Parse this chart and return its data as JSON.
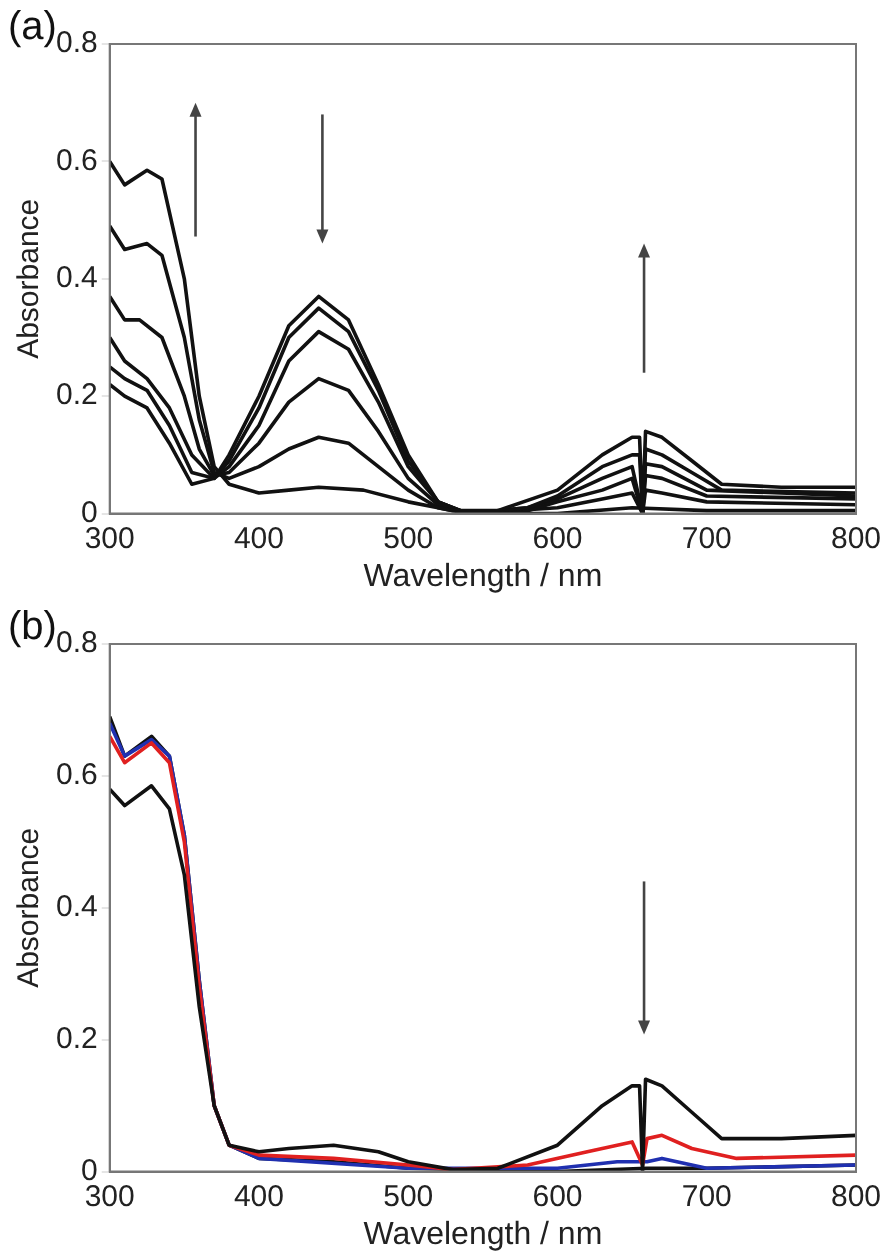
{
  "chart_data": [
    {
      "type": "line",
      "title": "(a)",
      "xlabel": "Wavelength / nm",
      "ylabel": "Absorbance",
      "xlim": [
        300,
        800
      ],
      "xticks": [
        300,
        400,
        500,
        600,
        700,
        800
      ],
      "ylim": [
        0,
        0.8
      ],
      "yticks": [
        0,
        0.2,
        0.4,
        0.6,
        0.8
      ],
      "marker": "none",
      "line_style": "solid",
      "series": [
        {
          "color": "#111111",
          "x": [
            300,
            310,
            325,
            335,
            350,
            360,
            370,
            380,
            400,
            420,
            440,
            470,
            500,
            530,
            560,
            600,
            630,
            650,
            655,
            657,
            659,
            670,
            690,
            710,
            750,
            800
          ],
          "values": [
            0.6,
            0.56,
            0.585,
            0.57,
            0.4,
            0.2,
            0.08,
            0.05,
            0.035,
            0.04,
            0.045,
            0.04,
            0.02,
            0.005,
            0.005,
            0.04,
            0.1,
            0.13,
            0.13,
            0.0,
            0.14,
            0.13,
            0.09,
            0.05,
            0.045,
            0.045
          ]
        },
        {
          "color": "#111111",
          "x": [
            300,
            310,
            325,
            335,
            350,
            360,
            370,
            380,
            400,
            420,
            440,
            460,
            480,
            500,
            520,
            540,
            580,
            600,
            630,
            650,
            655,
            657,
            659,
            670,
            690,
            710,
            800
          ],
          "values": [
            0.49,
            0.45,
            0.46,
            0.44,
            0.3,
            0.16,
            0.07,
            0.06,
            0.08,
            0.11,
            0.13,
            0.12,
            0.08,
            0.04,
            0.01,
            0.0,
            0.01,
            0.03,
            0.08,
            0.1,
            0.1,
            0.0,
            0.11,
            0.1,
            0.07,
            0.04,
            0.035
          ]
        },
        {
          "color": "#111111",
          "x": [
            300,
            310,
            320,
            335,
            350,
            360,
            370,
            380,
            400,
            420,
            440,
            460,
            480,
            500,
            520,
            540,
            580,
            600,
            630,
            650,
            657,
            659,
            670,
            700,
            800
          ],
          "values": [
            0.37,
            0.33,
            0.33,
            0.3,
            0.2,
            0.11,
            0.065,
            0.07,
            0.12,
            0.19,
            0.23,
            0.21,
            0.14,
            0.06,
            0.015,
            0.0,
            0.01,
            0.025,
            0.06,
            0.08,
            0.0,
            0.085,
            0.08,
            0.04,
            0.03
          ]
        },
        {
          "color": "#111111",
          "x": [
            300,
            310,
            325,
            340,
            355,
            370,
            380,
            400,
            420,
            440,
            460,
            480,
            500,
            520,
            540,
            580,
            600,
            630,
            650,
            657,
            659,
            670,
            700,
            800
          ],
          "values": [
            0.3,
            0.26,
            0.23,
            0.18,
            0.1,
            0.06,
            0.08,
            0.15,
            0.26,
            0.31,
            0.28,
            0.19,
            0.08,
            0.02,
            0.0,
            0.005,
            0.02,
            0.04,
            0.06,
            0.0,
            0.065,
            0.06,
            0.03,
            0.025
          ]
        },
        {
          "color": "#111111",
          "x": [
            300,
            310,
            325,
            340,
            355,
            370,
            380,
            400,
            420,
            440,
            460,
            480,
            500,
            520,
            540,
            600,
            630,
            650,
            657,
            659,
            670,
            700,
            800
          ],
          "values": [
            0.25,
            0.23,
            0.21,
            0.15,
            0.07,
            0.06,
            0.09,
            0.18,
            0.3,
            0.35,
            0.31,
            0.21,
            0.09,
            0.02,
            0.0,
            0.01,
            0.025,
            0.035,
            0.0,
            0.04,
            0.035,
            0.02,
            0.015
          ]
        },
        {
          "color": "#111111",
          "x": [
            300,
            310,
            325,
            340,
            355,
            370,
            380,
            400,
            420,
            440,
            460,
            480,
            500,
            520,
            540,
            600,
            650,
            700,
            800
          ],
          "values": [
            0.22,
            0.2,
            0.18,
            0.12,
            0.05,
            0.06,
            0.1,
            0.2,
            0.32,
            0.37,
            0.33,
            0.22,
            0.1,
            0.02,
            0.0,
            0.0,
            0.01,
            0.005,
            0.005
          ]
        }
      ]
    },
    {
      "type": "line",
      "title": "(b)",
      "xlabel": "Wavelength / nm",
      "ylabel": "Absorbance",
      "xlim": [
        300,
        800
      ],
      "xticks": [
        300,
        400,
        500,
        600,
        700,
        800
      ],
      "ylim": [
        0,
        0.8
      ],
      "yticks": [
        0,
        0.2,
        0.4,
        0.6,
        0.8
      ],
      "marker": "none",
      "line_style": "solid",
      "series": [
        {
          "color": "#111111",
          "x": [
            300,
            310,
            328,
            340,
            350,
            360,
            370,
            380,
            400,
            420,
            450,
            480,
            500,
            530,
            560,
            600,
            630,
            650,
            655,
            657,
            659,
            670,
            690,
            710,
            750,
            800
          ],
          "values": [
            0.58,
            0.555,
            0.585,
            0.55,
            0.45,
            0.25,
            0.1,
            0.04,
            0.03,
            0.035,
            0.04,
            0.03,
            0.015,
            0.003,
            0.005,
            0.04,
            0.1,
            0.13,
            0.13,
            0.0,
            0.14,
            0.13,
            0.09,
            0.05,
            0.05,
            0.055
          ]
        },
        {
          "color": "#e02020",
          "x": [
            300,
            310,
            328,
            340,
            350,
            360,
            370,
            380,
            400,
            450,
            500,
            530,
            580,
            620,
            650,
            657,
            660,
            670,
            690,
            720,
            800
          ],
          "values": [
            0.66,
            0.62,
            0.65,
            0.62,
            0.5,
            0.28,
            0.1,
            0.04,
            0.025,
            0.02,
            0.01,
            0.003,
            0.01,
            0.03,
            0.045,
            0.01,
            0.05,
            0.055,
            0.035,
            0.02,
            0.025
          ]
        },
        {
          "color": "#2030b0",
          "x": [
            300,
            310,
            328,
            340,
            350,
            360,
            370,
            380,
            400,
            500,
            600,
            640,
            660,
            670,
            700,
            800
          ],
          "values": [
            0.68,
            0.63,
            0.655,
            0.63,
            0.51,
            0.29,
            0.1,
            0.04,
            0.02,
            0.005,
            0.005,
            0.015,
            0.015,
            0.02,
            0.005,
            0.01
          ]
        },
        {
          "color": "#111111",
          "x": [
            300,
            310,
            328,
            340,
            350,
            360,
            370,
            380,
            400,
            450,
            500,
            600,
            660,
            700,
            800
          ],
          "values": [
            0.69,
            0.63,
            0.66,
            0.63,
            0.51,
            0.29,
            0.1,
            0.04,
            0.02,
            0.015,
            0.005,
            0.0,
            0.005,
            0.005,
            0.01
          ]
        }
      ]
    }
  ]
}
